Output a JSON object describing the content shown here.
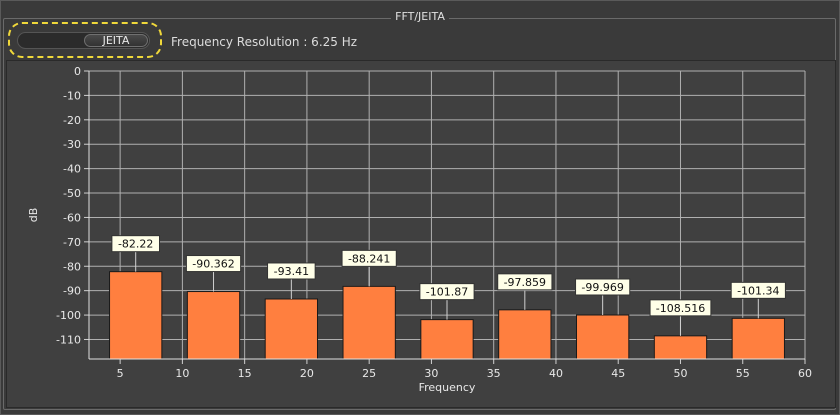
{
  "group": {
    "title": "FFT/JEITA"
  },
  "toggle": {
    "label": "JEITA"
  },
  "frequency_resolution": "Frequency Resolution : 6.25 Hz",
  "colors": {
    "bar": "#ff7f3f",
    "grid": "#b0b0b0",
    "label_bg": "#ffffe8"
  },
  "chart_data": {
    "type": "bar",
    "xlabel": "Frequency",
    "ylabel": "dB",
    "xlim": [
      2.5,
      60
    ],
    "ylim": [
      -118,
      0
    ],
    "x_ticks": [
      5,
      10,
      15,
      20,
      25,
      30,
      35,
      40,
      45,
      50,
      55,
      60
    ],
    "y_ticks": [
      0,
      -10,
      -20,
      -30,
      -40,
      -50,
      -60,
      -70,
      -80,
      -90,
      -100,
      -110
    ],
    "grid": true,
    "bars": [
      {
        "x": 6.25,
        "value": -82.22,
        "label": "-82.22"
      },
      {
        "x": 12.5,
        "value": -90.362,
        "label": "-90.362"
      },
      {
        "x": 18.75,
        "value": -93.41,
        "label": "-93.41"
      },
      {
        "x": 25,
        "value": -88.241,
        "label": "-88.241"
      },
      {
        "x": 31.25,
        "value": -101.87,
        "label": "-101.87"
      },
      {
        "x": 37.5,
        "value": -97.859,
        "label": "-97.859"
      },
      {
        "x": 43.75,
        "value": -99.969,
        "label": "-99.969"
      },
      {
        "x": 50,
        "value": -108.516,
        "label": "-108.516"
      },
      {
        "x": 56.25,
        "value": -101.34,
        "label": "-101.34"
      }
    ]
  }
}
